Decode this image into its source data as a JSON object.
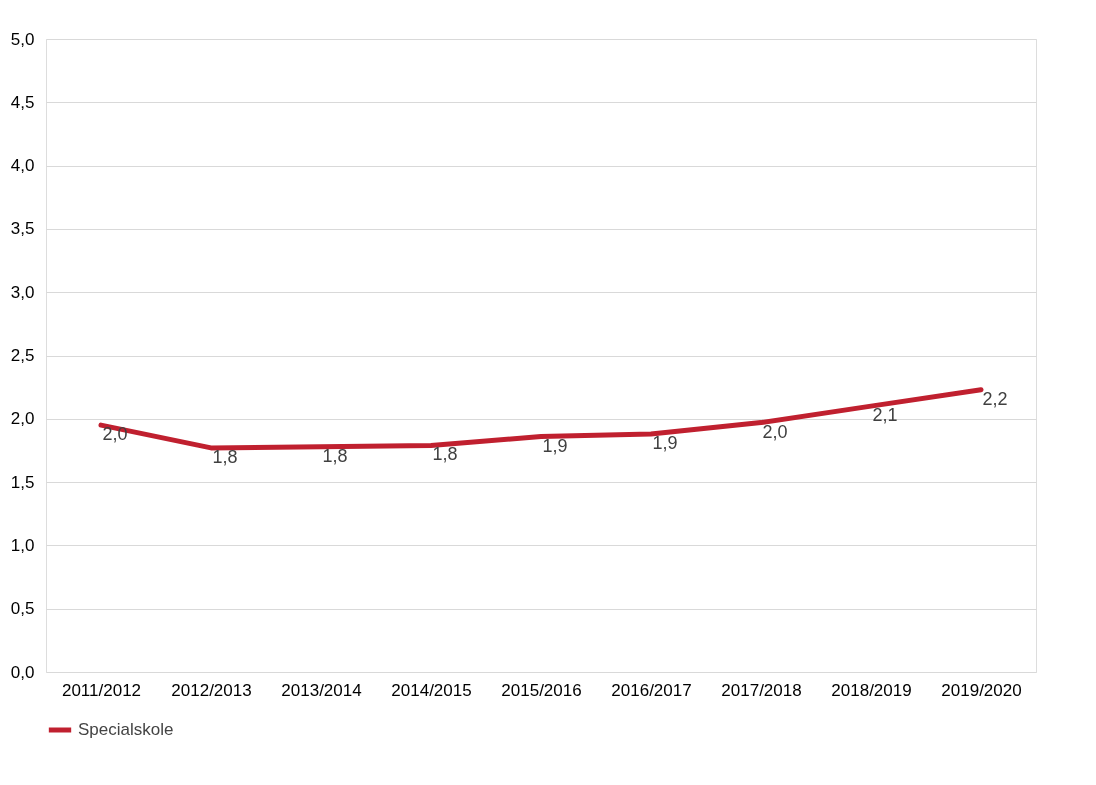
{
  "chart_data": {
    "type": "line",
    "categories": [
      "2011/2012",
      "2012/2013",
      "2013/2014",
      "2014/2015",
      "2015/2016",
      "2016/2017",
      "2017/2018",
      "2018/2019",
      "2019/2020"
    ],
    "series": [
      {
        "name": "Specialskole",
        "color": "#c0202f",
        "values": [
          1.95,
          1.77,
          1.78,
          1.79,
          1.86,
          1.88,
          1.97,
          2.1,
          2.23
        ],
        "value_labels": [
          "2,0",
          "1,8",
          "1,8",
          "1,8",
          "1,9",
          "1,9",
          "2,0",
          "2,1",
          "2,2"
        ]
      }
    ],
    "ylim": [
      0,
      5
    ],
    "yticks": [
      {
        "value": 0,
        "label": "0,0"
      },
      {
        "value": 0.5,
        "label": "0,5"
      },
      {
        "value": 1,
        "label": "1,0"
      },
      {
        "value": 1.5,
        "label": "1,5"
      },
      {
        "value": 2,
        "label": "2,0"
      },
      {
        "value": 2.5,
        "label": "2,5"
      },
      {
        "value": 3,
        "label": "3,0"
      },
      {
        "value": 3.5,
        "label": "3,5"
      },
      {
        "value": 4,
        "label": "4,0"
      },
      {
        "value": 4.5,
        "label": "4,5"
      },
      {
        "value": 5,
        "label": "5,0"
      }
    ],
    "grid": "y",
    "legend": "bottom",
    "marker": "none",
    "line_style": "solid"
  }
}
